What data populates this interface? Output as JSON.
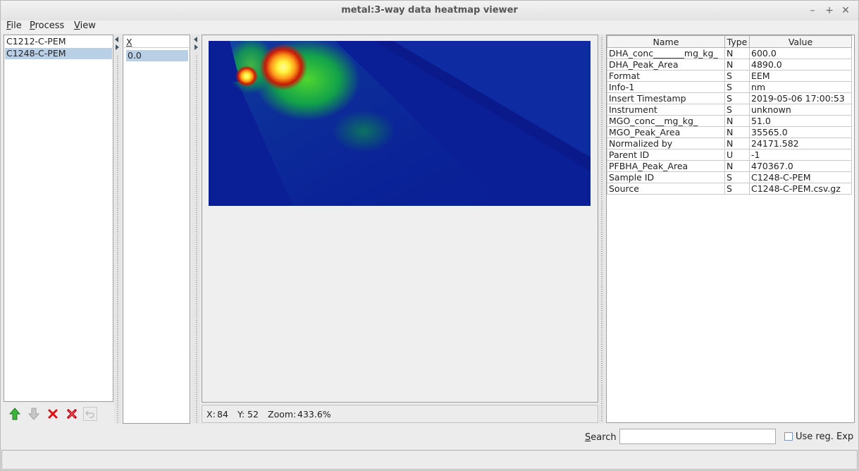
{
  "window": {
    "title": "metal:3-way data heatmap viewer"
  },
  "menu": {
    "file": "File",
    "process": "Process",
    "view": "View"
  },
  "datasets": [
    "C1212-C-PEM",
    "C1248-C-PEM"
  ],
  "selected_dataset": 1,
  "xpanel": {
    "header": "X",
    "values": [
      "0.0"
    ]
  },
  "status": {
    "x_label": "X:",
    "x": "84",
    "y_label": "Y:",
    "y": "52",
    "zoom_label": "Zoom:",
    "zoom": "433.6%"
  },
  "props": {
    "headers": [
      "Name",
      "Type",
      "Value"
    ],
    "rows": [
      [
        "DHA_conc_______mg_kg_",
        "N",
        "600.0"
      ],
      [
        "DHA_Peak_Area",
        "N",
        "4890.0"
      ],
      [
        "Format",
        "S",
        "EEM"
      ],
      [
        "Info-1",
        "S",
        "nm"
      ],
      [
        "Insert Timestamp",
        "S",
        "2019-05-06 17:00:53"
      ],
      [
        "Instrument",
        "S",
        "unknown"
      ],
      [
        "MGO_conc__mg_kg_",
        "N",
        "51.0"
      ],
      [
        "MGO_Peak_Area",
        "N",
        "35565.0"
      ],
      [
        "Normalized by",
        "N",
        "24171.582"
      ],
      [
        "Parent ID",
        "U",
        "-1"
      ],
      [
        "PFBHA_Peak_Area",
        "N",
        "470367.0"
      ],
      [
        "Sample ID",
        "S",
        "C1248-C-PEM"
      ],
      [
        "Source",
        "S",
        "C1248-C-PEM.csv.gz"
      ]
    ]
  },
  "search": {
    "label": "Search",
    "value": "",
    "regex_label": "Use reg. Exp"
  },
  "toolbar": {
    "icons": [
      "arrow-up-icon",
      "arrow-down-icon",
      "remove-icon",
      "remove-all-icon",
      "undo-icon"
    ]
  },
  "colors": {
    "heat_low": "#0a1f96",
    "heat_mid": "#11a84a",
    "heat_high": "#fff23a",
    "heat_peak": "#c81a08",
    "selection": "#b8cfe6"
  }
}
